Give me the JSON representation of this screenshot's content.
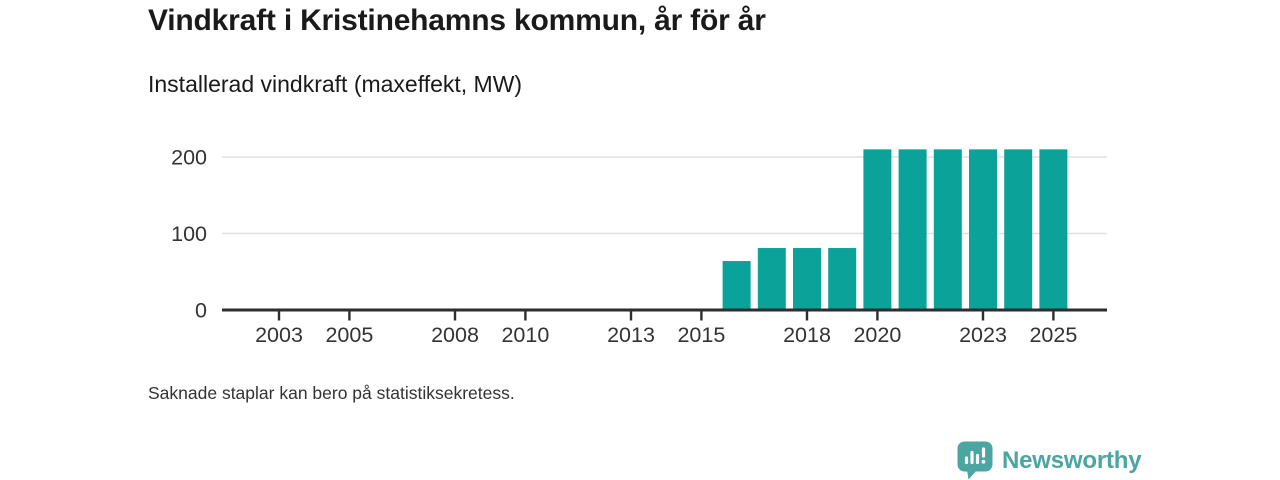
{
  "header": {
    "title": "Vindkraft i Kristinehamns kommun, år för år",
    "subtitle": "Installerad vindkraft (maxeffekt, MW)"
  },
  "chart_data": {
    "type": "bar",
    "title": "Vindkraft i Kristinehamns kommun, år för år",
    "subtitle": "Installerad vindkraft (maxeffekt, MW)",
    "ylabel": "Installerad vindkraft (maxeffekt, MW)",
    "xlabel": "",
    "unit": "MW",
    "x": [
      2016,
      2017,
      2018,
      2019,
      2020,
      2021,
      2022,
      2023,
      2024,
      2025
    ],
    "values": [
      64,
      81,
      81,
      81,
      210,
      210,
      210,
      210,
      210,
      210
    ],
    "x_ticks": [
      2003,
      2005,
      2008,
      2010,
      2013,
      2015,
      2018,
      2020,
      2023,
      2025
    ],
    "y_ticks": [
      0,
      100,
      200
    ],
    "xlim": [
      2001.4,
      2026.5
    ],
    "ylim": [
      0,
      215
    ],
    "grid": "horizontal-only",
    "legend": "none",
    "missing_years_note": "Saknade staplar kan bero på statistiksekretess."
  },
  "footer": {
    "note": "Saknade staplar kan bero på statistiksekretess."
  },
  "branding": {
    "logo_text": "Newsworthy",
    "logo_icon": "bar-chart-speech-bubble-icon"
  },
  "colors": {
    "bar": "#0BA29A",
    "logo": "#4BA5A0",
    "axis": "#2E2E2E",
    "grid": "#E0E0E0",
    "axis_label": "#333333",
    "title_text": "#1A1A1A"
  }
}
